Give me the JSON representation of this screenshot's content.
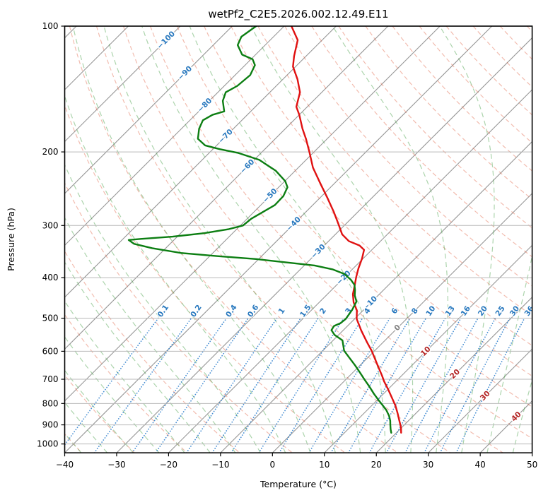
{
  "chart_data": {
    "type": "line",
    "subtype": "skewt-log-p",
    "title": "wetPf2_C2E5.2026.002.12.49.E11",
    "xlabel": "Temperature (°C)",
    "ylabel": "Pressure (hPa)",
    "x_range_c": [
      -40,
      50
    ],
    "pressure_range_hpa": [
      1050,
      100
    ],
    "grid": true,
    "series": [
      {
        "name": "temperature",
        "color": "#e01111",
        "points_p_t": [
          [
            100,
            -78.6
          ],
          [
            108,
            -74.7
          ],
          [
            118,
            -72.3
          ],
          [
            125,
            -70.5
          ],
          [
            134,
            -67.2
          ],
          [
            144,
            -64.2
          ],
          [
            156,
            -62.1
          ],
          [
            163,
            -60.0
          ],
          [
            176,
            -56.7
          ],
          [
            186,
            -54.1
          ],
          [
            200,
            -50.9
          ],
          [
            218,
            -47.2
          ],
          [
            238,
            -42.7
          ],
          [
            257,
            -38.7
          ],
          [
            278,
            -34.7
          ],
          [
            297,
            -31.5
          ],
          [
            315,
            -28.7
          ],
          [
            327,
            -26.1
          ],
          [
            335,
            -23.2
          ],
          [
            343,
            -21.5
          ],
          [
            360,
            -20.2
          ],
          [
            380,
            -19.0
          ],
          [
            398,
            -17.8
          ],
          [
            418,
            -16.4
          ],
          [
            438,
            -15.1
          ],
          [
            458,
            -13.4
          ],
          [
            479,
            -11.2
          ],
          [
            502,
            -9.6
          ],
          [
            535,
            -6.5
          ],
          [
            571,
            -3.1
          ],
          [
            598,
            -0.6
          ],
          [
            642,
            2.9
          ],
          [
            686,
            6.2
          ],
          [
            708,
            7.7
          ],
          [
            741,
            10.1
          ],
          [
            780,
            12.7
          ],
          [
            810,
            14.6
          ],
          [
            843,
            16.4
          ],
          [
            883,
            18.4
          ],
          [
            914,
            19.9
          ],
          [
            940,
            20.9
          ]
        ]
      },
      {
        "name": "dewpoint",
        "color": "#0c7e12",
        "points_p_t": [
          [
            100,
            -85.4
          ],
          [
            106,
            -86.2
          ],
          [
            111,
            -85.3
          ],
          [
            117,
            -82.6
          ],
          [
            120,
            -79.7
          ],
          [
            124,
            -78.1
          ],
          [
            131,
            -77.1
          ],
          [
            139,
            -77.5
          ],
          [
            144,
            -78.5
          ],
          [
            151,
            -77.4
          ],
          [
            160,
            -75.1
          ],
          [
            163,
            -76.7
          ],
          [
            168,
            -77.5
          ],
          [
            176,
            -76.6
          ],
          [
            186,
            -74.9
          ],
          [
            193,
            -72.2
          ],
          [
            197,
            -68.7
          ],
          [
            201,
            -64.5
          ],
          [
            209,
            -59.0
          ],
          [
            222,
            -53.7
          ],
          [
            235,
            -49.9
          ],
          [
            243,
            -48.3
          ],
          [
            255,
            -47.4
          ],
          [
            268,
            -47.3
          ],
          [
            280,
            -48.4
          ],
          [
            289,
            -49.2
          ],
          [
            300,
            -49.5
          ],
          [
            306,
            -51.5
          ],
          [
            313,
            -55.5
          ],
          [
            319,
            -60.9
          ],
          [
            323,
            -66.6
          ],
          [
            325,
            -68.7
          ],
          [
            332,
            -66.9
          ],
          [
            340,
            -62.6
          ],
          [
            349,
            -56.2
          ],
          [
            355,
            -48.7
          ],
          [
            361,
            -40.5
          ],
          [
            368,
            -33.7
          ],
          [
            374,
            -28.0
          ],
          [
            382,
            -23.8
          ],
          [
            392,
            -20.6
          ],
          [
            405,
            -18.2
          ],
          [
            416,
            -16.6
          ],
          [
            428,
            -15.5
          ],
          [
            441,
            -14.5
          ],
          [
            456,
            -13.0
          ],
          [
            478,
            -12.2
          ],
          [
            502,
            -11.7
          ],
          [
            514,
            -11.9
          ],
          [
            522,
            -12.6
          ],
          [
            534,
            -12.3
          ],
          [
            548,
            -10.8
          ],
          [
            565,
            -8.2
          ],
          [
            598,
            -5.9
          ],
          [
            622,
            -3.5
          ],
          [
            649,
            -0.9
          ],
          [
            675,
            1.4
          ],
          [
            700,
            3.5
          ],
          [
            729,
            5.9
          ],
          [
            759,
            8.2
          ],
          [
            787,
            10.4
          ],
          [
            806,
            11.9
          ],
          [
            830,
            13.7
          ],
          [
            856,
            15.3
          ],
          [
            880,
            16.5
          ],
          [
            900,
            17.3
          ],
          [
            922,
            18.2
          ],
          [
            940,
            19.0
          ]
        ]
      }
    ],
    "background": {
      "isotherms_c": [
        -150,
        -140,
        -130,
        -120,
        -110,
        -100,
        -90,
        -80,
        -70,
        -60,
        -50,
        -40,
        -30,
        -20,
        -10,
        0,
        10,
        20,
        30,
        40,
        50
      ],
      "dry_adiabats_theta_c": {
        "start": -50,
        "end": 200,
        "step": 10
      },
      "moist_adiabats_t0_c": {
        "start": -40,
        "end": 50,
        "step": 5
      },
      "mixing_ratio_g_kg": [
        0.1,
        0.2,
        0.4,
        0.6,
        1,
        1.5,
        2,
        3,
        4,
        6,
        8,
        10,
        13,
        16,
        20,
        25,
        30,
        36
      ]
    }
  },
  "axes": {
    "x": {
      "label": "Temperature (°C)",
      "values": [
        -40,
        -30,
        -20,
        -10,
        0,
        10,
        20,
        30,
        40,
        50
      ],
      "ticks": [
        "−40",
        "−30",
        "−20",
        "−10",
        "0",
        "10",
        "20",
        "30",
        "40",
        "50"
      ]
    },
    "y": {
      "label": "Pressure (hPa)",
      "values": [
        100,
        200,
        300,
        400,
        500,
        600,
        700,
        800,
        900,
        1000
      ],
      "ticks": [
        "100",
        "200",
        "300",
        "400",
        "500",
        "600",
        "700",
        "800",
        "900",
        "1000"
      ]
    }
  },
  "isotherm_labels": {
    "values": [
      -100,
      -90,
      -80,
      -70,
      -60,
      -50,
      -40,
      -30,
      -20,
      -10,
      0,
      10,
      20,
      30,
      40
    ],
    "labels": [
      "−100",
      "−90",
      "−80",
      "−70",
      "−60",
      "−50",
      "−40",
      "−30",
      "−20",
      "−10",
      "0",
      "10",
      "20",
      "30",
      "40"
    ]
  },
  "mixing_labels": {
    "values": [
      0.1,
      0.2,
      0.4,
      0.6,
      1,
      1.5,
      2,
      3,
      4,
      6,
      8,
      10,
      13,
      16,
      20,
      25,
      30,
      36
    ],
    "labels": [
      "0.1",
      "0.2",
      "0.4",
      "0.6",
      "1",
      "1.5",
      "2",
      "3",
      "4",
      "6",
      "8",
      "10",
      "13",
      "16",
      "20",
      "25",
      "30",
      "36"
    ]
  },
  "colors": {
    "temperature": "#e01111",
    "dewpoint": "#0c7e12",
    "isotherm": "#979797",
    "pressure_grid": "#b9b9b9",
    "dry_adiabat": "#e06040",
    "moist_adiabat": "#46a046",
    "mixing_line": "#1a73c8",
    "label_negative": "#2878be",
    "label_zero": "#808080",
    "label_positive": "#b22222",
    "frame": "#000000"
  }
}
